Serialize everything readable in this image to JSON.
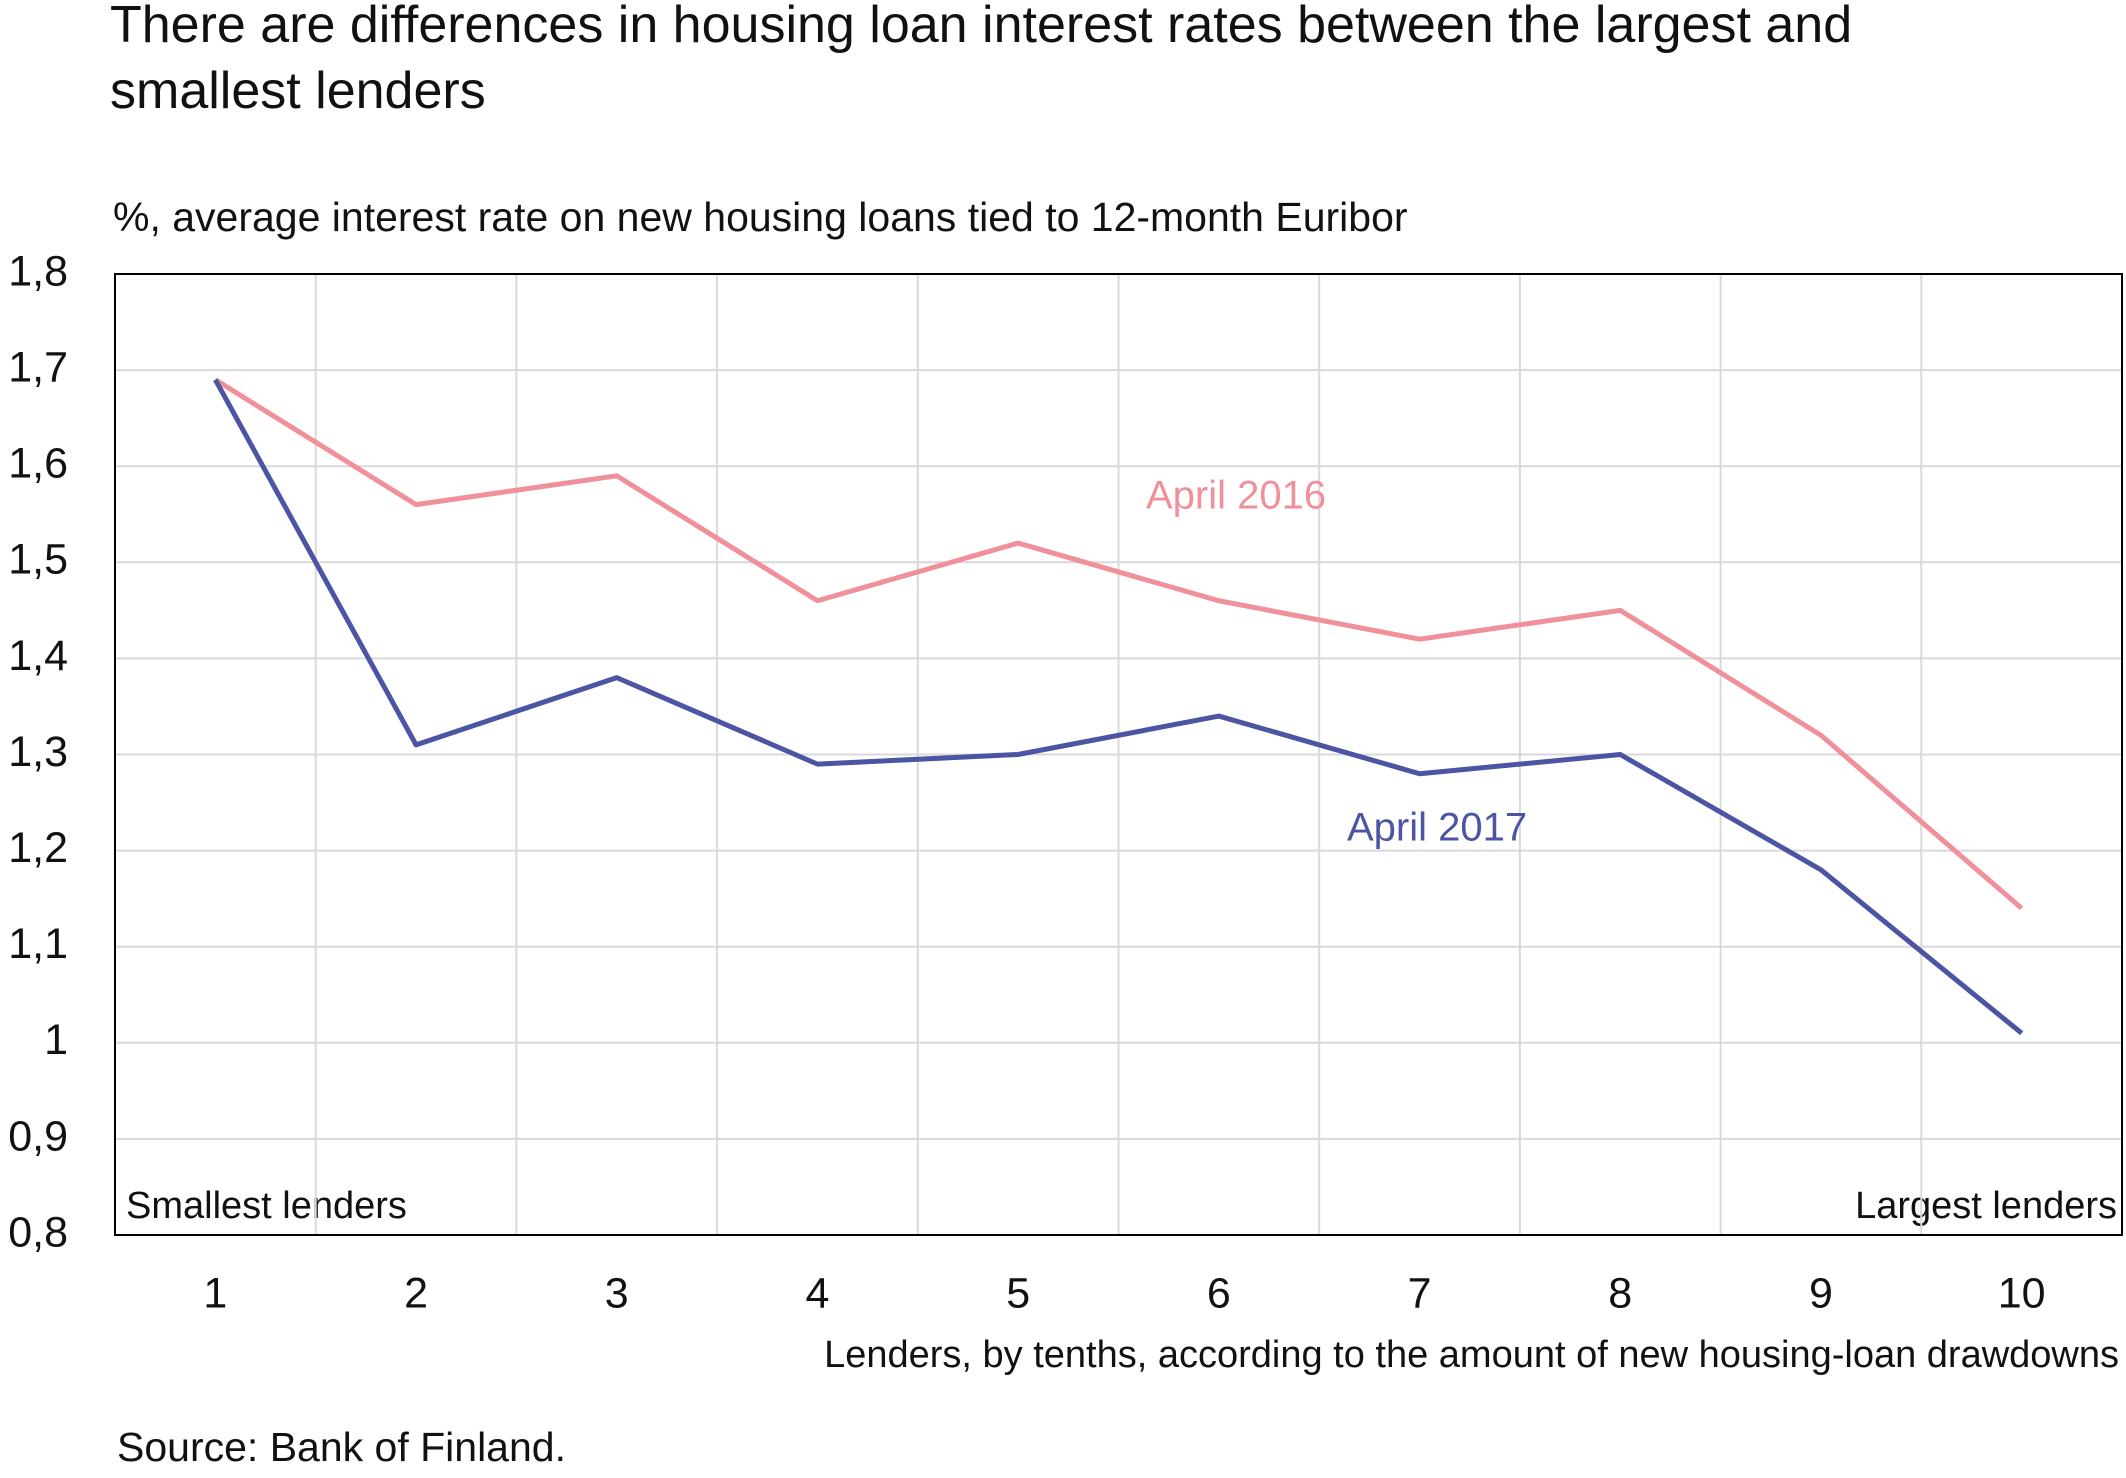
{
  "chart_data": {
    "type": "line",
    "title": "There are differences in housing loan interest rates between the largest and smallest lenders",
    "subtitle": "%, average interest rate on new housing loans tied to 12-month Euribor",
    "x_label": "Lenders, by tenths, according to the amount of new housing-loan drawdowns",
    "annotations": [
      "Smallest lenders",
      "Largest lenders"
    ],
    "source": "Source: Bank of Finland.",
    "categories": [
      "1",
      "2",
      "3",
      "4",
      "5",
      "6",
      "7",
      "8",
      "9",
      "10"
    ],
    "series": [
      {
        "name": "April 2016",
        "color": "#f0909a",
        "values": [
          1.69,
          1.56,
          1.59,
          1.46,
          1.52,
          1.46,
          1.42,
          1.45,
          1.32,
          1.14
        ]
      },
      {
        "name": "April 2017",
        "color": "#4b55a3",
        "values": [
          1.69,
          1.31,
          1.38,
          1.29,
          1.3,
          1.34,
          1.28,
          1.3,
          1.18,
          1.01
        ]
      }
    ],
    "ylim": [
      0.8,
      1.8
    ],
    "yticks": [
      {
        "value": 0.8,
        "label": "0,8"
      },
      {
        "value": 0.9,
        "label": "0,9"
      },
      1,
      {
        "value": 1.1,
        "label": "1,1"
      },
      {
        "value": 1.2,
        "label": "1,2"
      },
      {
        "value": 1.3,
        "label": "1,3"
      },
      {
        "value": 1.4,
        "label": "1,4"
      },
      {
        "value": 1.5,
        "label": "1,5"
      },
      {
        "value": 1.6,
        "label": "1,6"
      },
      {
        "value": 1.7,
        "label": "1,7"
      },
      {
        "value": 1.8,
        "label": "1,8"
      }
    ],
    "grid": true
  }
}
